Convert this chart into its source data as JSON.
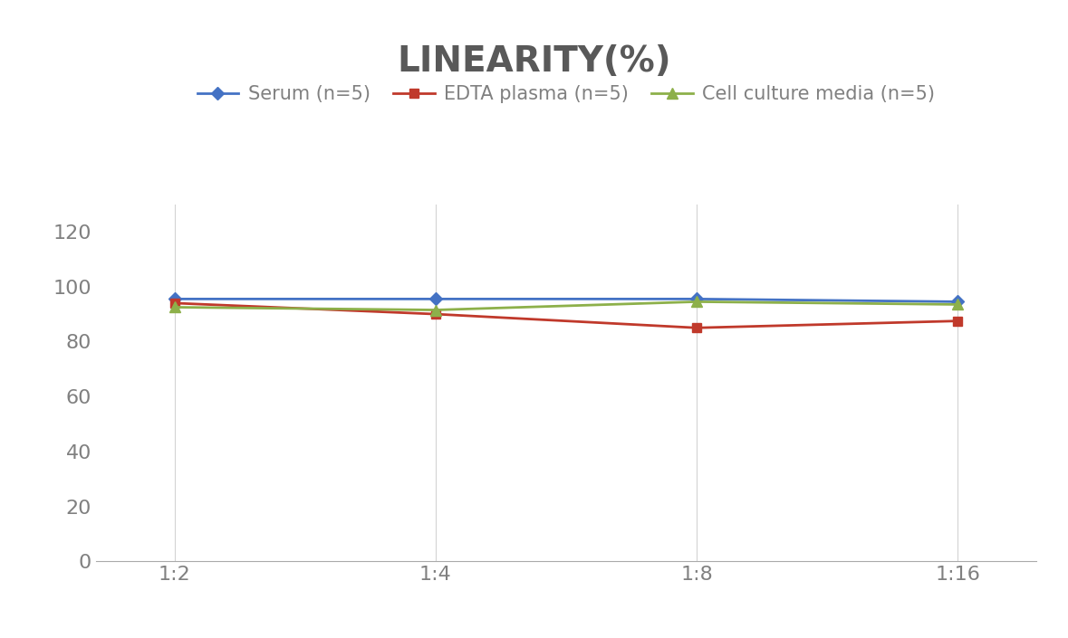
{
  "title": "LINEARITY(%)",
  "x_labels": [
    "1:2",
    "1:4",
    "1:8",
    "1:16"
  ],
  "x_positions": [
    0,
    1,
    2,
    3
  ],
  "series": [
    {
      "label": "Serum (n=5)",
      "values": [
        95.5,
        95.5,
        95.5,
        94.5
      ],
      "color": "#4472C4",
      "marker": "D",
      "markersize": 7,
      "linewidth": 2
    },
    {
      "label": "EDTA plasma (n=5)",
      "values": [
        94.0,
        90.0,
        85.0,
        87.5
      ],
      "color": "#C0392B",
      "marker": "s",
      "markersize": 7,
      "linewidth": 2
    },
    {
      "label": "Cell culture media (n=5)",
      "values": [
        92.5,
        91.5,
        94.5,
        93.5
      ],
      "color": "#8DB04A",
      "marker": "^",
      "markersize": 8,
      "linewidth": 2
    }
  ],
  "ylim": [
    0,
    130
  ],
  "yticks": [
    0,
    20,
    40,
    60,
    80,
    100,
    120
  ],
  "background_color": "#FFFFFF",
  "grid_color": "#D3D3D3",
  "title_fontsize": 28,
  "tick_fontsize": 16,
  "legend_fontsize": 15,
  "title_color": "#595959",
  "tick_color": "#808080"
}
